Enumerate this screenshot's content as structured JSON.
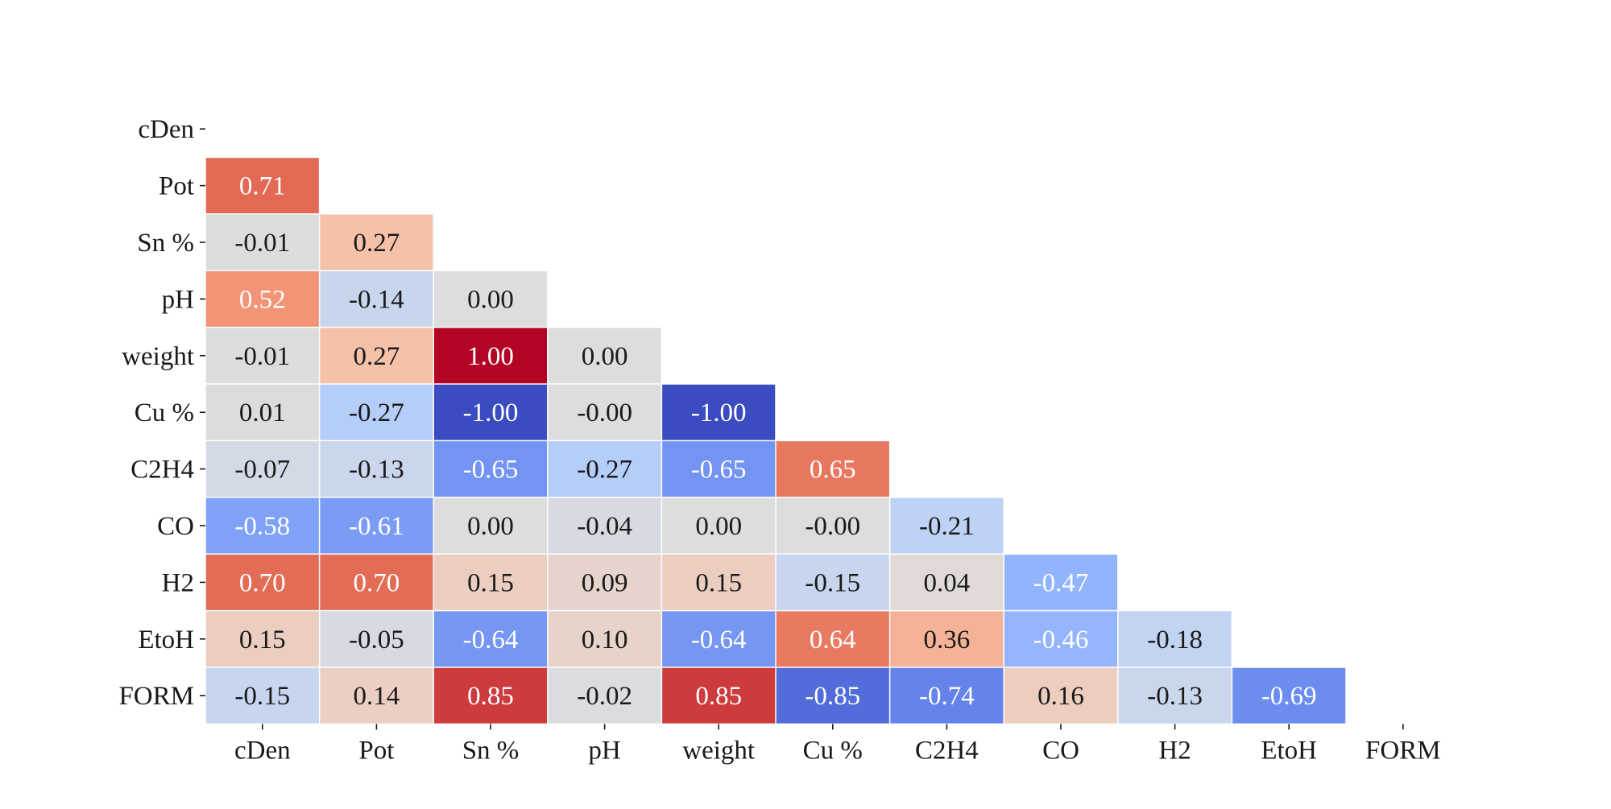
{
  "chart_data": {
    "type": "heatmap",
    "title": "",
    "xlabel": "",
    "ylabel": "",
    "mask": "upper-triangle-including-diagonal",
    "value_format": "2 decimals",
    "colormap": "coolwarm",
    "vmin": -1,
    "vmax": 1,
    "x_categories": [
      "cDen",
      "Pot",
      "Sn %",
      "pH",
      "weight",
      "Cu %",
      "C2H4",
      "CO",
      "H2",
      "EtoH",
      "FORM"
    ],
    "y_categories": [
      "cDen",
      "Pot",
      "Sn %",
      "pH",
      "weight",
      "Cu %",
      "C2H4",
      "CO",
      "H2",
      "EtoH",
      "FORM"
    ],
    "rows": [
      {
        "label": "cDen",
        "values": []
      },
      {
        "label": "Pot",
        "values": [
          0.71
        ]
      },
      {
        "label": "Sn %",
        "values": [
          -0.01,
          0.27
        ]
      },
      {
        "label": "pH",
        "values": [
          0.52,
          -0.14,
          0.0
        ]
      },
      {
        "label": "weight",
        "values": [
          -0.01,
          0.27,
          1.0,
          0.0
        ]
      },
      {
        "label": "Cu %",
        "values": [
          0.01,
          -0.27,
          -1.0,
          -0.0,
          -1.0
        ]
      },
      {
        "label": "C2H4",
        "values": [
          -0.07,
          -0.13,
          -0.65,
          -0.27,
          -0.65,
          0.65
        ]
      },
      {
        "label": "CO",
        "values": [
          -0.58,
          -0.61,
          0.0,
          -0.04,
          0.0,
          -0.0,
          -0.21
        ]
      },
      {
        "label": "H2",
        "values": [
          0.7,
          0.7,
          0.15,
          0.09,
          0.15,
          -0.15,
          0.04,
          -0.47
        ]
      },
      {
        "label": "EtoH",
        "values": [
          0.15,
          -0.05,
          -0.64,
          0.1,
          -0.64,
          0.64,
          0.36,
          -0.46,
          -0.18
        ]
      },
      {
        "label": "FORM",
        "values": [
          -0.15,
          0.14,
          0.85,
          -0.02,
          0.85,
          -0.85,
          -0.74,
          0.16,
          -0.13,
          -0.69
        ]
      }
    ],
    "cell_labels": [
      [],
      [
        "0.71"
      ],
      [
        "-0.01",
        "0.27"
      ],
      [
        "0.52",
        "-0.14",
        "0.00"
      ],
      [
        "-0.01",
        "0.27",
        "1.00",
        "0.00"
      ],
      [
        "0.01",
        "-0.27",
        "-1.00",
        "-0.00",
        "-1.00"
      ],
      [
        "-0.07",
        "-0.13",
        "-0.65",
        "-0.27",
        "-0.65",
        "0.65"
      ],
      [
        "-0.58",
        "-0.61",
        "0.00",
        "-0.04",
        "0.00",
        "-0.00",
        "-0.21"
      ],
      [
        "0.70",
        "0.70",
        "0.15",
        "0.09",
        "0.15",
        "-0.15",
        "0.04",
        "-0.47"
      ],
      [
        "0.15",
        "-0.05",
        "-0.64",
        "0.10",
        "-0.64",
        "0.64",
        "0.36",
        "-0.46",
        "-0.18"
      ],
      [
        "-0.15",
        "0.14",
        "0.85",
        "-0.02",
        "0.85",
        "-0.85",
        "-0.74",
        "0.16",
        "-0.13",
        "-0.69"
      ]
    ],
    "grid_lines": "white",
    "legend": "none"
  }
}
